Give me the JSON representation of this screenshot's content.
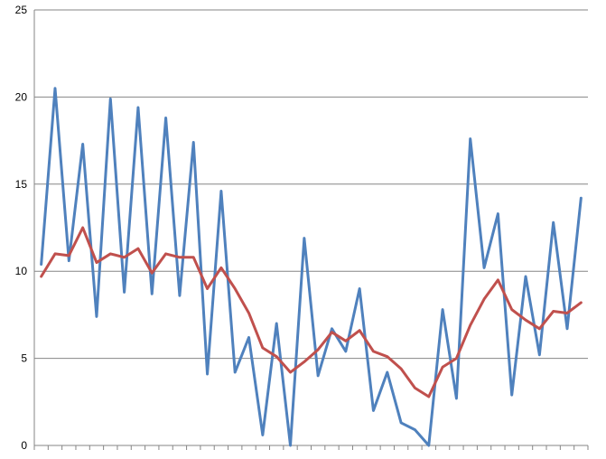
{
  "chart_data": {
    "type": "line",
    "title": "",
    "xlabel": "",
    "ylabel": "",
    "ylim": [
      0,
      25
    ],
    "yticks": [
      0,
      5,
      10,
      15,
      20,
      25
    ],
    "grid": true,
    "legend": "none",
    "x": [
      1,
      2,
      3,
      4,
      5,
      6,
      7,
      8,
      9,
      10,
      11,
      12,
      13,
      14,
      15,
      16,
      17,
      18,
      19,
      20,
      21,
      22,
      23,
      24,
      25,
      26,
      27,
      28,
      29,
      30,
      31,
      32,
      33,
      34,
      35,
      36,
      37,
      38,
      39,
      40
    ],
    "series": [
      {
        "color": "#4F81BD",
        "values": [
          10.4,
          20.5,
          10.6,
          17.3,
          7.4,
          19.9,
          8.8,
          19.4,
          8.7,
          18.8,
          8.6,
          17.4,
          4.1,
          14.6,
          4.2,
          6.2,
          0.6,
          7.0,
          0.0,
          11.9,
          4.0,
          6.7,
          5.4,
          9.0,
          2.0,
          4.2,
          1.3,
          0.9,
          0.0,
          7.8,
          2.7,
          17.6,
          10.2,
          13.3,
          2.9,
          9.7,
          5.2,
          12.8,
          6.7,
          14.2
        ]
      },
      {
        "color": "#C0504D",
        "values": [
          9.7,
          11.0,
          10.9,
          12.5,
          10.5,
          11.0,
          10.8,
          11.3,
          9.9,
          11.0,
          10.8,
          10.8,
          9.0,
          10.2,
          9.0,
          7.6,
          5.6,
          5.1,
          4.2,
          4.8,
          5.5,
          6.5,
          6.0,
          6.6,
          5.4,
          5.1,
          4.4,
          3.3,
          2.8,
          4.5,
          5.0,
          6.9,
          8.4,
          9.5,
          7.8,
          7.2,
          6.7,
          7.7,
          7.6,
          8.2
        ]
      }
    ]
  }
}
